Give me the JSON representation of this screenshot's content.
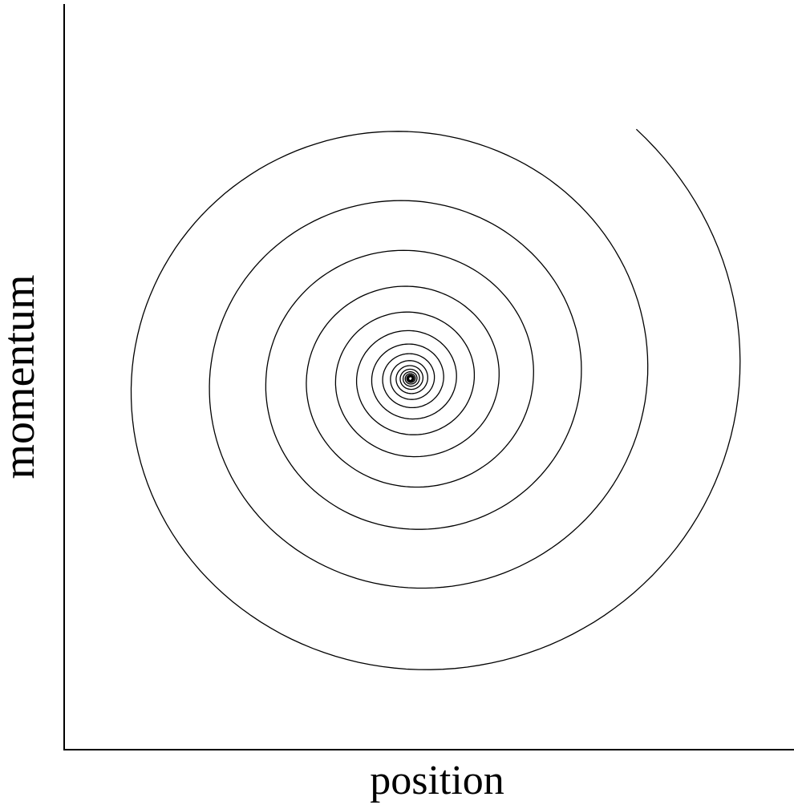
{
  "axes": {
    "x_label": "position",
    "y_label": "momentum"
  }
}
